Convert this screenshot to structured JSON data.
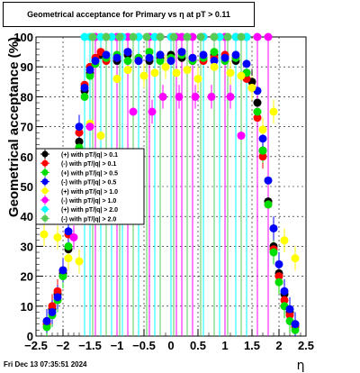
{
  "title": "Geometrical acceptance for Primary vs    η  at pT > 0.11",
  "footer": "Fri Dec 13 07:35:51 2024",
  "chart_data": {
    "type": "scatter",
    "title": "Geometrical acceptance for Primary vs    η  at pT > 0.11",
    "xlabel": "η",
    "ylabel": "Geometrical acceptance (%)",
    "xlim": [
      -2.5,
      2.5
    ],
    "ylim": [
      0,
      100
    ],
    "x_ticks": [
      "−2.5",
      "−2",
      "−1.5",
      "−1",
      "−0.5",
      "0",
      "0.5",
      "1",
      "1.5",
      "2",
      "2.5"
    ],
    "y_ticks": [
      "0",
      "10",
      "20",
      "30",
      "40",
      "50",
      "60",
      "70",
      "80",
      "90",
      "100"
    ],
    "grid": true,
    "legend_position": "middle-left",
    "series": [
      {
        "name": "(+) with pT/|q| > 0.1",
        "color": "#000000",
        "marker": "circle",
        "x": [
          -2.3,
          -2.2,
          -2.1,
          -2.0,
          -1.9,
          -1.8,
          -1.7,
          -1.6,
          -1.5,
          -1.4,
          -1.3,
          -1.2,
          -1.0,
          -0.8,
          -0.6,
          -0.4,
          -0.2,
          0.0,
          0.2,
          0.4,
          0.6,
          0.8,
          1.0,
          1.2,
          1.4,
          1.5,
          1.6,
          1.7,
          1.8,
          1.9,
          2.0,
          2.1,
          2.2,
          2.3
        ],
        "y": [
          5,
          9,
          14,
          21,
          29,
          48,
          65,
          82,
          88,
          92,
          94,
          93,
          92,
          94,
          93,
          92,
          93,
          94,
          93,
          92,
          93,
          94,
          93,
          92,
          88,
          85,
          78,
          62,
          45,
          30,
          21,
          14,
          8,
          4
        ]
      },
      {
        "name": "(-) with pT/|q| > 0.1",
        "color": "#ff0000",
        "marker": "circle",
        "x": [
          -2.3,
          -2.2,
          -2.1,
          -2.0,
          -1.9,
          -1.8,
          -1.7,
          -1.6,
          -1.5,
          -1.4,
          -1.3,
          -1.2,
          -1.0,
          -0.8,
          -0.6,
          -0.4,
          -0.2,
          0.0,
          0.2,
          0.4,
          0.6,
          0.8,
          1.0,
          1.2,
          1.4,
          1.5,
          1.6,
          1.7,
          1.8,
          1.9,
          2.0,
          2.1,
          2.2,
          2.3
        ],
        "y": [
          4,
          10,
          15,
          22,
          34,
          50,
          68,
          84,
          90,
          93,
          95,
          92,
          93,
          95,
          92,
          93,
          94,
          93,
          95,
          93,
          92,
          93,
          94,
          93,
          86,
          83,
          73,
          60,
          44,
          29,
          20,
          12,
          7,
          3
        ]
      },
      {
        "name": "(+) with pT/|q| > 0.5",
        "color": "#00dd00",
        "marker": "circle",
        "x": [
          -2.3,
          -2.2,
          -2.1,
          -2.0,
          -1.9,
          -1.8,
          -1.7,
          -1.6,
          -1.5,
          -1.4,
          -1.2,
          -1.0,
          -0.8,
          -0.6,
          -0.4,
          -0.2,
          0.0,
          0.2,
          0.4,
          0.6,
          0.8,
          1.0,
          1.2,
          1.4,
          1.6,
          1.7,
          1.8,
          1.9,
          2.0,
          2.1,
          2.2,
          2.3
        ],
        "y": [
          3,
          7,
          12,
          20,
          30,
          45,
          63,
          80,
          87,
          91,
          93,
          94,
          92,
          93,
          95,
          92,
          93,
          94,
          92,
          93,
          95,
          92,
          93,
          88,
          75,
          62,
          44,
          28,
          18,
          10,
          5,
          2
        ]
      },
      {
        "name": "(-) with pT/|q| > 0.5",
        "color": "#0000ff",
        "marker": "circle",
        "x": [
          -2.3,
          -2.2,
          -2.1,
          -2.0,
          -1.9,
          -1.8,
          -1.7,
          -1.6,
          -1.5,
          -1.4,
          -1.2,
          -1.0,
          -0.8,
          -0.6,
          -0.4,
          -0.2,
          0.0,
          0.2,
          0.4,
          0.6,
          0.8,
          1.0,
          1.2,
          1.4,
          1.6,
          1.7,
          1.8,
          1.9,
          2.0,
          2.1,
          2.2,
          2.3
        ],
        "y": [
          5,
          8,
          13,
          22,
          35,
          52,
          70,
          83,
          89,
          92,
          94,
          93,
          95,
          92,
          93,
          94,
          92,
          95,
          93,
          94,
          92,
          93,
          94,
          91,
          82,
          66,
          52,
          36,
          24,
          15,
          9,
          4
        ]
      },
      {
        "name": "(+) with pT/|q| > 1.0",
        "color": "#ffff00",
        "marker": "circle",
        "x": [
          -2.35,
          -2.1,
          -1.9,
          -1.7,
          -1.5,
          -1.3,
          -1.0,
          -0.8,
          -0.5,
          -0.3,
          -0.1,
          0.1,
          0.3,
          0.5,
          0.8,
          1.1,
          1.3,
          1.5,
          1.7,
          1.9,
          2.1,
          2.3
        ],
        "y": [
          34,
          33,
          26,
          25,
          71,
          67,
          86,
          89,
          87,
          88,
          90,
          88,
          89,
          86,
          90,
          88,
          87,
          83,
          69,
          75,
          32,
          26
        ]
      },
      {
        "name": "(-) with pT/|q| > 1.0",
        "color": "#ff00ff",
        "marker": "circle",
        "x": [
          -1.4,
          -1.2,
          -1.0,
          -0.8,
          -0.6,
          -0.4,
          -0.2,
          0.0,
          0.1,
          0.2,
          0.4,
          0.6,
          0.8,
          1.0,
          1.2,
          1.4,
          1.6,
          1.8,
          -1.8,
          -1.5,
          -0.7,
          -0.35,
          -0.15,
          0.15,
          0.45,
          0.75,
          1.1,
          1.3
        ],
        "y": [
          100,
          100,
          100,
          100,
          100,
          100,
          100,
          100,
          100,
          100,
          100,
          100,
          100,
          100,
          100,
          100,
          100,
          100,
          33,
          70,
          75,
          75,
          80,
          80,
          80,
          80,
          80,
          67
        ]
      },
      {
        "name": "(+) with pT/|q| > 2.0",
        "color": "#00ffff",
        "marker": "circle",
        "x": [
          -1.6,
          -1.5,
          -1.3,
          -1.1,
          -0.9,
          -0.6,
          -0.3,
          0.0,
          0.3,
          0.6,
          0.9,
          1.2,
          1.4
        ],
        "y": [
          100,
          100,
          100,
          100,
          100,
          100,
          100,
          100,
          100,
          100,
          100,
          100,
          100
        ]
      },
      {
        "name": "(-) with pT/|q| > 2.0",
        "color": "#55cc55",
        "marker": "circle",
        "x": [
          -1.45,
          -1.2,
          -0.95,
          -0.7,
          -0.45,
          -0.2,
          0.05,
          0.3,
          0.55,
          0.8,
          1.05,
          1.3
        ],
        "y": [
          100,
          100,
          100,
          100,
          100,
          100,
          100,
          100,
          100,
          100,
          100,
          100
        ]
      }
    ]
  }
}
